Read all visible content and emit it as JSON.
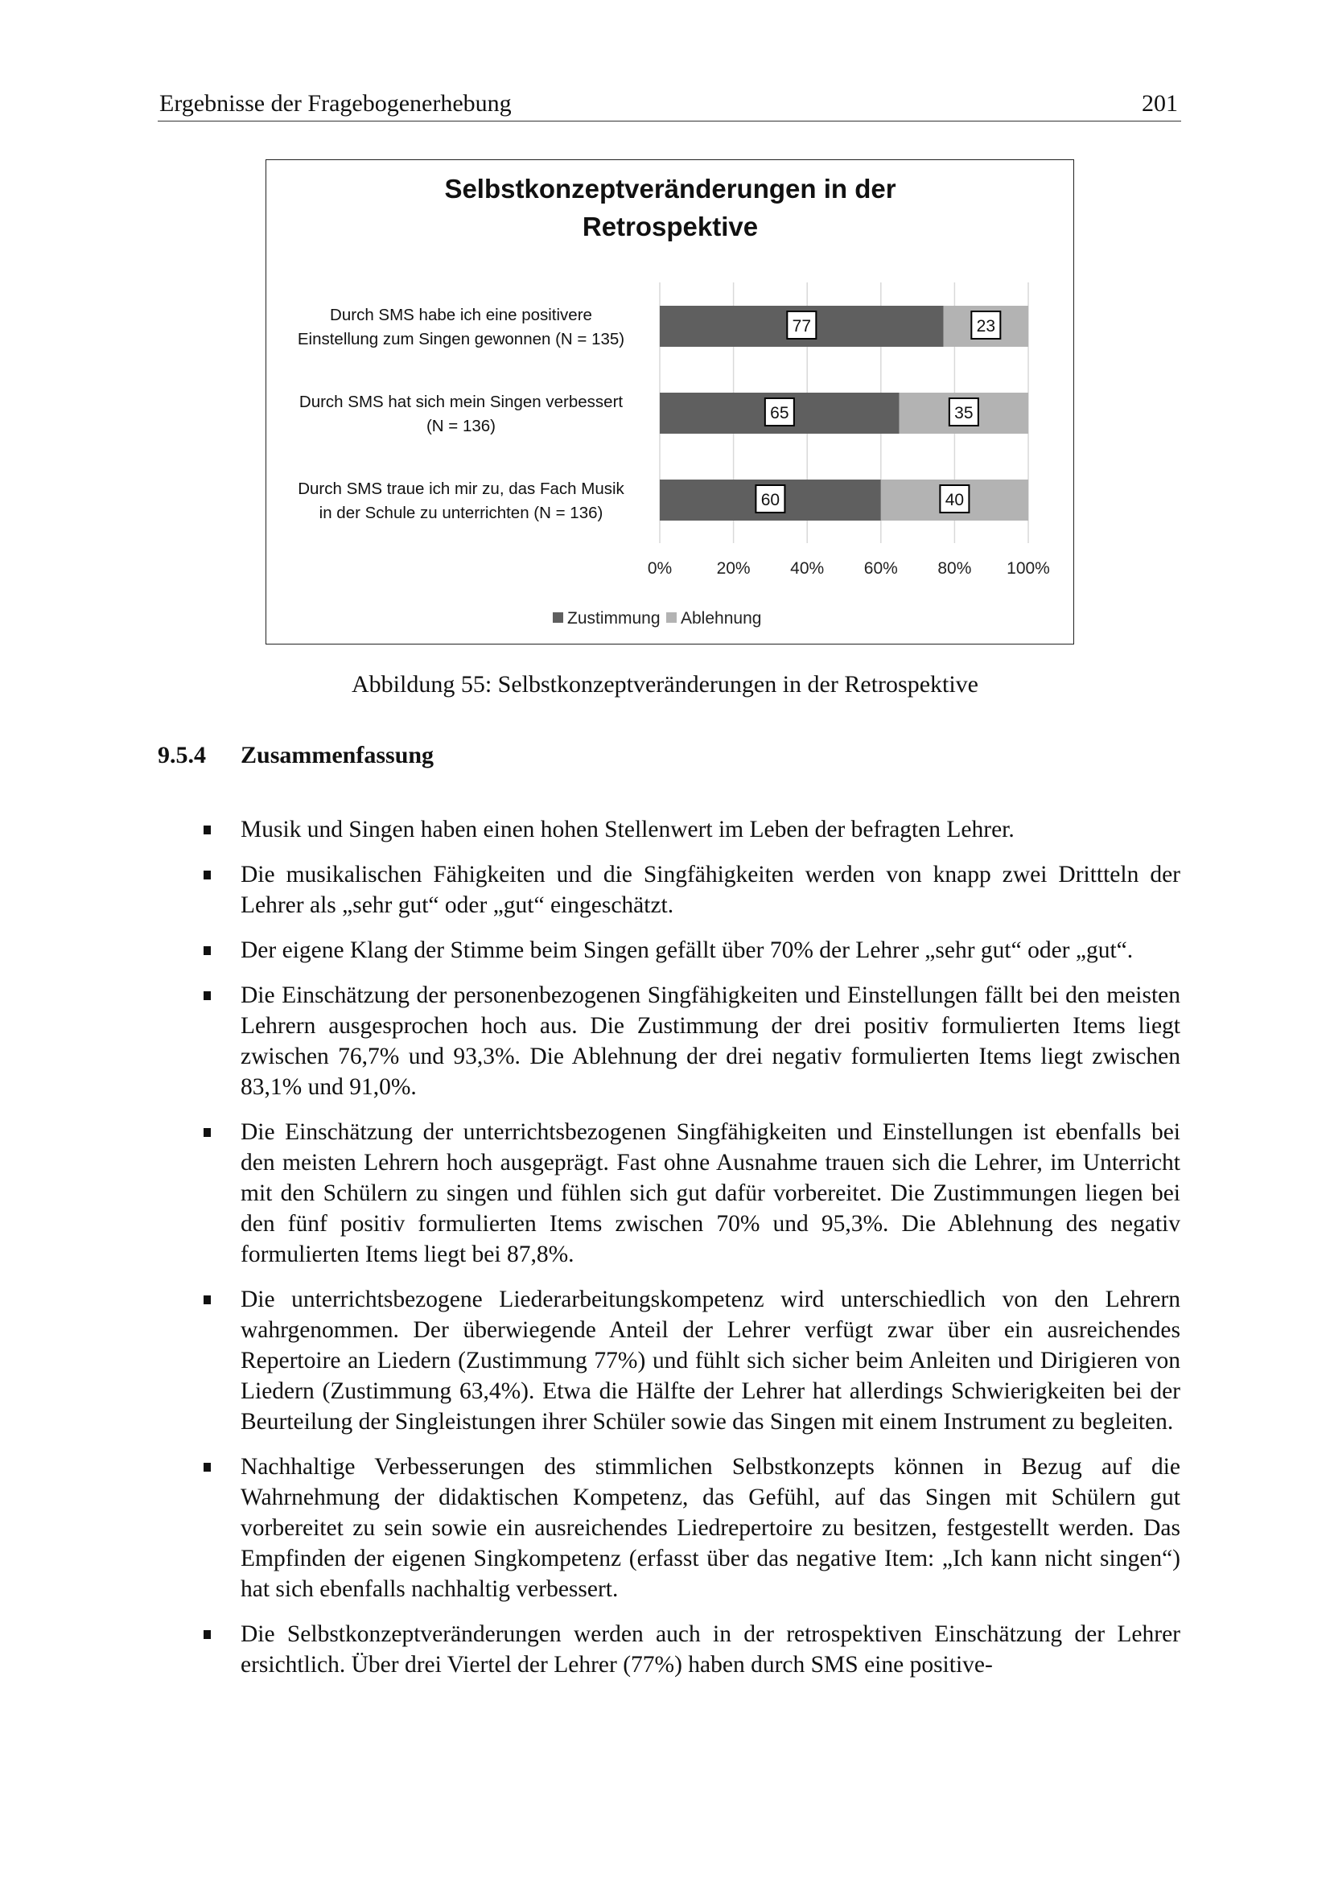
{
  "header": {
    "title": "Ergebnisse der Fragebogenerhebung",
    "page_number": "201"
  },
  "chart_data": {
    "type": "bar",
    "orientation": "horizontal-stacked-100",
    "title": "Selbstkonzeptveränderungen in der Retrospektive",
    "title_lines": [
      "Selbstkonzeptveränderungen in der",
      "Retrospektive"
    ],
    "categories": [
      [
        "Durch SMS habe ich eine positivere",
        "Einstellung zum Singen gewonnen (N = 135)"
      ],
      [
        "Durch SMS hat sich mein Singen verbessert",
        "(N = 136)"
      ],
      [
        "Durch SMS traue ich mir zu, das Fach Musik",
        "in der Schule zu unterrichten (N = 136)"
      ]
    ],
    "series": [
      {
        "name": "Zustimmung",
        "values": [
          77,
          65,
          60
        ],
        "color": "#5f5f5f"
      },
      {
        "name": "Ablehnung",
        "values": [
          23,
          35,
          40
        ],
        "color": "#b3b3b3"
      }
    ],
    "xticks": [
      "0%",
      "20%",
      "40%",
      "60%",
      "80%",
      "100%"
    ],
    "xlim": [
      0,
      100
    ],
    "grid": true,
    "legend": "bottom"
  },
  "caption": "Abbildung 55: Selbstkonzeptveränderungen in der Retrospektive",
  "section": {
    "number": "9.5.4",
    "title": "Zusammenfassung"
  },
  "bullets": [
    "Musik und Singen haben einen hohen Stellenwert im Leben der befragten Lehrer.",
    "Die musikalischen Fähigkeiten und die Singfähigkeiten werden von knapp zwei Drittteln der Lehrer als „sehr gut“ oder „gut“ eingeschätzt.",
    "Der eigene Klang der Stimme beim Singen gefällt über 70% der Lehrer „sehr gut“ oder „gut“.",
    "Die Einschätzung der personenbezogenen Singfähigkeiten und Einstellungen fällt bei den meisten Lehrern ausgesprochen hoch aus. Die Zustimmung der drei positiv formulierten Items liegt zwischen 76,7% und 93,3%. Die Ablehnung der drei negativ formulierten Items liegt zwischen 83,1% und 91,0%.",
    "Die Einschätzung der unterrichtsbezogenen Singfähigkeiten und Einstellungen ist ebenfalls bei den meisten Lehrern hoch ausgeprägt. Fast ohne Ausnahme trauen sich die Lehrer, im Unterricht mit den Schülern zu singen und fühlen sich gut dafür vorbereitet. Die Zustimmungen liegen bei den fünf positiv formulierten Items zwischen 70% und 95,3%. Die Ablehnung des negativ formulierten Items liegt bei 87,8%.",
    "Die unterrichtsbezogene Liederarbeitungskompetenz wird unterschiedlich von den Lehrern wahrgenommen. Der überwiegende Anteil der Lehrer verfügt zwar über ein ausreichendes Repertoire an Liedern (Zustimmung 77%) und fühlt sich sicher beim Anleiten und Dirigieren von Liedern (Zustimmung 63,4%). Etwa die Hälfte der Lehrer hat allerdings Schwierigkeiten bei der Beurteilung der Singleistungen ihrer Schüler sowie das Singen mit einem Instrument zu begleiten.",
    "Nachhaltige Verbesserungen des stimmlichen Selbstkonzepts können in Bezug auf die Wahrnehmung der didaktischen Kompetenz, das Gefühl, auf das Singen mit Schülern gut vorbereitet zu sein sowie ein ausreichendes Liedrepertoire zu besitzen, festgestellt werden. Das Empfinden der eigenen Singkompetenz (erfasst über das negative Item: „Ich kann nicht singen“) hat sich ebenfalls nachhaltig verbessert.",
    "Die Selbstkonzeptveränderungen werden auch in der retrospektiven Einschätzung der Lehrer ersichtlich. Über drei Viertel der Lehrer (77%) haben durch SMS eine positive-"
  ]
}
